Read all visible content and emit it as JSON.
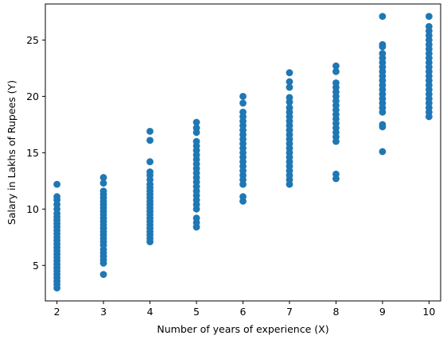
{
  "chart_data": {
    "type": "scatter",
    "xlabel": "Number of years of experience (X)",
    "ylabel": "Salary in Lakhs of Rupees (Y)",
    "xlim": [
      1.75,
      10.25
    ],
    "ylim": [
      1.85,
      28.2
    ],
    "xticks": [
      2,
      3,
      4,
      5,
      6,
      7,
      8,
      9,
      10
    ],
    "yticks": [
      5,
      10,
      15,
      20,
      25
    ],
    "grid": false,
    "marker_color": "#1f77b4",
    "points": [
      {
        "x": 2,
        "ys": [
          3.0,
          3.3,
          3.6,
          3.9,
          4.2,
          4.5,
          4.8,
          5.1,
          5.4,
          5.7,
          6.0,
          6.3,
          6.6,
          6.9,
          7.2,
          7.5,
          7.8,
          8.1,
          8.4,
          8.7,
          9.0,
          9.3,
          9.6,
          10.0,
          10.4,
          10.8,
          11.1,
          12.2
        ]
      },
      {
        "x": 3,
        "ys": [
          4.2,
          5.2,
          5.5,
          5.8,
          6.1,
          6.4,
          6.8,
          7.1,
          7.4,
          7.7,
          8.0,
          8.3,
          8.6,
          8.9,
          9.2,
          9.5,
          9.8,
          10.1,
          10.4,
          10.7,
          11.0,
          11.3,
          11.6,
          12.3,
          12.8
        ]
      },
      {
        "x": 4,
        "ys": [
          7.1,
          7.4,
          7.7,
          8.0,
          8.3,
          8.6,
          8.9,
          9.2,
          9.5,
          9.8,
          10.1,
          10.4,
          10.7,
          11.0,
          11.3,
          11.6,
          11.9,
          12.2,
          12.6,
          13.0,
          13.3,
          14.2,
          16.1,
          16.9
        ]
      },
      {
        "x": 5,
        "ys": [
          8.4,
          8.8,
          9.2,
          10.0,
          10.4,
          10.8,
          11.2,
          11.6,
          12.0,
          12.4,
          12.8,
          13.2,
          13.6,
          14.0,
          14.4,
          14.8,
          15.2,
          15.6,
          16.0,
          16.8,
          17.2,
          17.7
        ]
      },
      {
        "x": 6,
        "ys": [
          10.7,
          11.1,
          12.2,
          12.6,
          13.0,
          13.4,
          13.8,
          14.2,
          14.6,
          15.0,
          15.4,
          15.8,
          16.2,
          16.6,
          17.0,
          17.4,
          17.8,
          18.2,
          18.6,
          19.4,
          20.0
        ]
      },
      {
        "x": 7,
        "ys": [
          12.2,
          12.6,
          13.0,
          13.4,
          13.8,
          14.2,
          14.6,
          15.0,
          15.4,
          15.8,
          16.2,
          16.6,
          17.0,
          17.4,
          17.8,
          18.2,
          18.6,
          19.0,
          19.5,
          19.9,
          20.8,
          21.3,
          22.1
        ]
      },
      {
        "x": 8,
        "ys": [
          12.7,
          13.1,
          16.0,
          16.4,
          16.8,
          17.2,
          17.6,
          18.0,
          18.4,
          18.8,
          19.2,
          19.6,
          20.0,
          20.4,
          20.8,
          21.2,
          22.2,
          22.7
        ]
      },
      {
        "x": 9,
        "ys": [
          15.1,
          17.3,
          17.5,
          18.6,
          19.0,
          19.4,
          19.8,
          20.2,
          20.6,
          21.0,
          21.4,
          21.8,
          22.2,
          22.6,
          23.0,
          23.4,
          23.8,
          24.4,
          24.6,
          27.1
        ]
      },
      {
        "x": 10,
        "ys": [
          18.2,
          18.6,
          19.0,
          19.4,
          19.8,
          20.2,
          20.6,
          21.0,
          21.4,
          21.8,
          22.2,
          22.6,
          23.0,
          23.4,
          23.8,
          24.2,
          24.6,
          25.0,
          25.4,
          25.8,
          26.2,
          27.1
        ]
      }
    ]
  }
}
